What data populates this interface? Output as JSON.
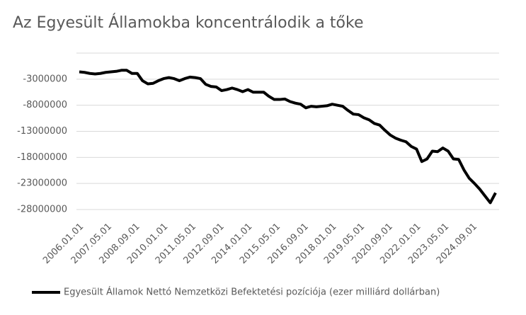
{
  "chart_data": {
    "type": "line",
    "title": "Az Egyesült Államokba koncentrálodik a tőke",
    "x": [
      "2006.01.01",
      "2006.04.01",
      "2006.07.01",
      "2006.10.01",
      "2007.01.01",
      "2007.04.01",
      "2007.07.01",
      "2007.10.01",
      "2008.01.01",
      "2008.04.01",
      "2008.07.01",
      "2008.10.01",
      "2009.01.01",
      "2009.04.01",
      "2009.07.01",
      "2009.10.01",
      "2010.01.01",
      "2010.04.01",
      "2010.07.01",
      "2010.10.01",
      "2011.01.01",
      "2011.04.01",
      "2011.07.01",
      "2011.10.01",
      "2012.01.01",
      "2012.04.01",
      "2012.07.01",
      "2012.10.01",
      "2013.01.01",
      "2013.04.01",
      "2013.07.01",
      "2013.10.01",
      "2014.01.01",
      "2014.04.01",
      "2014.07.01",
      "2014.10.01",
      "2015.01.01",
      "2015.04.01",
      "2015.07.01",
      "2015.10.01",
      "2016.01.01",
      "2016.04.01",
      "2016.07.01",
      "2016.10.01",
      "2017.01.01",
      "2017.04.01",
      "2017.07.01",
      "2017.10.01",
      "2018.01.01",
      "2018.04.01",
      "2018.07.01",
      "2018.10.01",
      "2019.01.01",
      "2019.04.01",
      "2019.07.01",
      "2019.10.01",
      "2020.01.01",
      "2020.04.01",
      "2020.07.01",
      "2020.10.01",
      "2021.01.01",
      "2021.04.01",
      "2021.07.01",
      "2021.10.01",
      "2022.01.01",
      "2022.04.01",
      "2022.07.01",
      "2022.10.01",
      "2023.01.01",
      "2023.04.01",
      "2023.07.01",
      "2023.10.01",
      "2024.01.01",
      "2024.04.01",
      "2024.07.01",
      "2024.10.01",
      "2025.01.01",
      "2025.04.01",
      "2025.07.01",
      "2025.10.01"
    ],
    "series": [
      {
        "name": "Egyesült Államok Nettó Nemzetközi Befektetési pozíciója (ezer milliárd dollárban)",
        "color": "#000000",
        "values": [
          -1600000,
          -1700000,
          -1900000,
          -2000000,
          -1900000,
          -1700000,
          -1600000,
          -1500000,
          -1300000,
          -1300000,
          -1900000,
          -1900000,
          -3300000,
          -3900000,
          -3800000,
          -3300000,
          -2900000,
          -2700000,
          -2900000,
          -3300000,
          -2900000,
          -2600000,
          -2700000,
          -2900000,
          -4000000,
          -4400000,
          -4500000,
          -5200000,
          -5000000,
          -4700000,
          -5000000,
          -5400000,
          -5000000,
          -5500000,
          -5500000,
          -5500000,
          -6300000,
          -6900000,
          -6900000,
          -6800000,
          -7300000,
          -7600000,
          -7800000,
          -8500000,
          -8200000,
          -8300000,
          -8200000,
          -8100000,
          -7800000,
          -8000000,
          -8200000,
          -9000000,
          -9700000,
          -9800000,
          -10400000,
          -10800000,
          -11500000,
          -11800000,
          -12800000,
          -13700000,
          -14300000,
          -14700000,
          -15000000,
          -15900000,
          -16400000,
          -18800000,
          -18300000,
          -16800000,
          -16900000,
          -16200000,
          -16800000,
          -18300000,
          -18400000,
          -20400000,
          -22000000,
          -23000000,
          -24100000,
          -25400000,
          -26700000,
          -24800000
        ]
      }
    ],
    "xticks": [
      "2006.01.01",
      "2007.05.01",
      "2008.09.01",
      "2010.01.01",
      "2011.05.01",
      "2012.09.01",
      "2014.01.01",
      "2015.05.01",
      "2016.09.01",
      "2018.01.01",
      "2019.05.01",
      "2020.09.01",
      "2022.01.01",
      "2023.05.01",
      "2024.09.01"
    ],
    "ylim": [
      -28000000,
      2000000
    ],
    "yticks": [
      -3000000,
      -8000000,
      -13000000,
      -18000000,
      -23000000,
      -28000000
    ],
    "grid": true,
    "legend": "bottom"
  }
}
